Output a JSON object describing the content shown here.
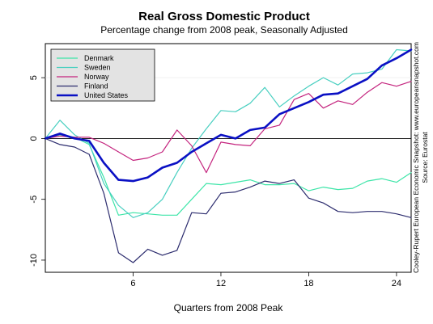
{
  "chart_data": {
    "type": "line",
    "title": "Real Gross Domestic Product",
    "subtitle": "Percentage change from 2008 peak, Seasonally Adjusted",
    "xlabel": "Quarters from 2008 Peak",
    "ylabel": "",
    "xlim": [
      0,
      25
    ],
    "ylim": [
      -11,
      7.8
    ],
    "xticks": [
      6,
      12,
      18,
      24
    ],
    "yticks": [
      -10,
      -5,
      0,
      5
    ],
    "zero_line": true,
    "grid": false,
    "legend_position": "top-left",
    "source_note": "Cooley-Rupert European Economic Snapshot: www.europeansnapshot.com",
    "source_credit": "Source: Eurostat",
    "x": [
      0,
      1,
      2,
      3,
      4,
      5,
      6,
      7,
      8,
      9,
      10,
      11,
      12,
      13,
      14,
      15,
      16,
      17,
      18,
      19,
      20,
      21,
      22,
      23,
      24,
      25
    ],
    "series": [
      {
        "name": "Denmark",
        "color": "#3de5a8",
        "width": 1.2,
        "values": [
          0,
          0.3,
          0.1,
          -0.5,
          -3.2,
          -6.3,
          -6.1,
          -6.2,
          -6.3,
          -6.3,
          -5.0,
          -3.7,
          -3.8,
          -3.6,
          -3.4,
          -3.8,
          -3.8,
          -3.7,
          -4.3,
          -4.0,
          -4.2,
          -4.1,
          -3.5,
          -3.3,
          -3.6,
          -2.8
        ]
      },
      {
        "name": "Sweden",
        "color": "#48cfc0",
        "width": 1.2,
        "values": [
          0,
          1.5,
          0.3,
          -0.4,
          -3.7,
          -5.5,
          -6.5,
          -6.1,
          -5.0,
          -2.8,
          -0.8,
          0.8,
          2.3,
          2.2,
          2.9,
          4.2,
          2.6,
          3.5,
          4.3,
          5.0,
          4.4,
          5.3,
          5.4,
          5.7,
          7.3,
          7.2
        ]
      },
      {
        "name": "Norway",
        "color": "#c4247e",
        "width": 1.2,
        "values": [
          0,
          0.2,
          0.1,
          0.1,
          -0.4,
          -1.1,
          -1.8,
          -1.6,
          -1.1,
          0.7,
          -0.6,
          -2.8,
          -0.3,
          -0.5,
          -0.6,
          0.8,
          1.1,
          3.2,
          3.7,
          2.5,
          3.1,
          2.8,
          3.8,
          4.6,
          4.3,
          4.7
        ]
      },
      {
        "name": "Finland",
        "color": "#2c2c6e",
        "width": 1.2,
        "values": [
          0,
          -0.5,
          -0.7,
          -1.3,
          -4.5,
          -9.4,
          -10.2,
          -9.1,
          -9.6,
          -9.2,
          -6.1,
          -6.2,
          -4.5,
          -4.4,
          -4.0,
          -3.5,
          -3.7,
          -3.4,
          -4.9,
          -5.3,
          -6.0,
          -6.1,
          -6.0,
          -6.0,
          -6.2,
          -6.5
        ]
      },
      {
        "name": "United States",
        "color": "#0a10c4",
        "width": 2.6,
        "values": [
          0,
          0.4,
          0.0,
          -0.2,
          -2.0,
          -3.4,
          -3.5,
          -3.2,
          -2.4,
          -2.0,
          -1.1,
          -0.4,
          0.3,
          0.0,
          0.7,
          0.9,
          2.0,
          2.5,
          3.0,
          3.6,
          3.7,
          4.3,
          4.9,
          6.0,
          6.6,
          7.3
        ]
      }
    ]
  }
}
